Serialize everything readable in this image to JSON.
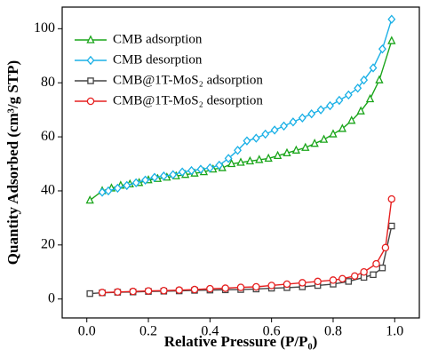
{
  "chart_data": {
    "type": "line",
    "xlabel": "Relative Pressure (P/P₀)",
    "ylabel": "Quantity Adsorbed (cm³/g STP)",
    "xlim": [
      -0.08,
      1.08
    ],
    "ylim": [
      -7,
      108
    ],
    "xticks": [
      {
        "value": 0,
        "label": "0.0"
      },
      {
        "value": 0.2,
        "label": "0.2"
      },
      {
        "value": 0.4,
        "label": "0.4"
      },
      {
        "value": 0.6,
        "label": "0.6"
      },
      {
        "value": 0.8,
        "label": "0.8"
      },
      {
        "value": 1,
        "label": "1.0"
      }
    ],
    "yticks": [
      0,
      20,
      40,
      60,
      80,
      100
    ],
    "legend": "upper left",
    "series": [
      {
        "name": "CMB adsorption",
        "color": "#1aa51a",
        "marker": "triangle",
        "x": [
          0.01,
          0.05,
          0.08,
          0.11,
          0.14,
          0.17,
          0.2,
          0.23,
          0.26,
          0.29,
          0.32,
          0.35,
          0.38,
          0.41,
          0.44,
          0.47,
          0.5,
          0.53,
          0.56,
          0.59,
          0.62,
          0.65,
          0.68,
          0.71,
          0.74,
          0.77,
          0.8,
          0.83,
          0.86,
          0.89,
          0.92,
          0.95,
          0.99
        ],
        "values": [
          36.5,
          40,
          41,
          42,
          42.5,
          43,
          44,
          44.5,
          45,
          45.5,
          46,
          46.5,
          47,
          48,
          48.5,
          50,
          50.5,
          51,
          51.5,
          52,
          53,
          54,
          55,
          56,
          57.5,
          59,
          61,
          63,
          66,
          69.5,
          74,
          81,
          95.5
        ]
      },
      {
        "name": "CMB desorption",
        "color": "#1ab0e6",
        "marker": "diamond",
        "x": [
          0.05,
          0.07,
          0.1,
          0.13,
          0.16,
          0.19,
          0.22,
          0.25,
          0.28,
          0.31,
          0.34,
          0.37,
          0.4,
          0.43,
          0.46,
          0.49,
          0.52,
          0.55,
          0.58,
          0.61,
          0.64,
          0.67,
          0.7,
          0.73,
          0.76,
          0.79,
          0.82,
          0.85,
          0.88,
          0.9,
          0.93,
          0.96,
          0.99
        ],
        "values": [
          39.5,
          40,
          41,
          42,
          43,
          44,
          45,
          45.5,
          46,
          47,
          47.5,
          48,
          48.5,
          49.5,
          52,
          55,
          58.5,
          59.5,
          61,
          62.5,
          64,
          65.5,
          67,
          68.5,
          70,
          71.5,
          73.5,
          75.5,
          78,
          81,
          85.5,
          92.5,
          103.5
        ]
      },
      {
        "name": "CMB@1T-MoS₂ adsorption",
        "color": "#444444",
        "marker": "square",
        "x": [
          0.01,
          0.05,
          0.1,
          0.15,
          0.2,
          0.25,
          0.3,
          0.35,
          0.4,
          0.45,
          0.5,
          0.55,
          0.6,
          0.65,
          0.7,
          0.75,
          0.8,
          0.85,
          0.9,
          0.93,
          0.96,
          0.99
        ],
        "values": [
          2,
          2.3,
          2.5,
          2.6,
          2.8,
          2.9,
          3,
          3.2,
          3.3,
          3.4,
          3.5,
          3.7,
          4,
          4.2,
          4.5,
          5,
          5.5,
          6.5,
          8,
          9,
          11.5,
          27
        ]
      },
      {
        "name": "CMB@1T-MoS₂ desorption",
        "color": "#e62020",
        "marker": "circle",
        "x": [
          0.05,
          0.1,
          0.15,
          0.2,
          0.25,
          0.3,
          0.35,
          0.4,
          0.45,
          0.5,
          0.55,
          0.6,
          0.65,
          0.7,
          0.75,
          0.8,
          0.83,
          0.87,
          0.9,
          0.94,
          0.97,
          0.99
        ],
        "values": [
          2.4,
          2.6,
          2.8,
          3,
          3.1,
          3.3,
          3.5,
          3.8,
          4,
          4.3,
          4.5,
          5,
          5.5,
          6,
          6.5,
          7,
          7.5,
          8.5,
          10,
          13,
          19,
          37
        ]
      }
    ]
  }
}
